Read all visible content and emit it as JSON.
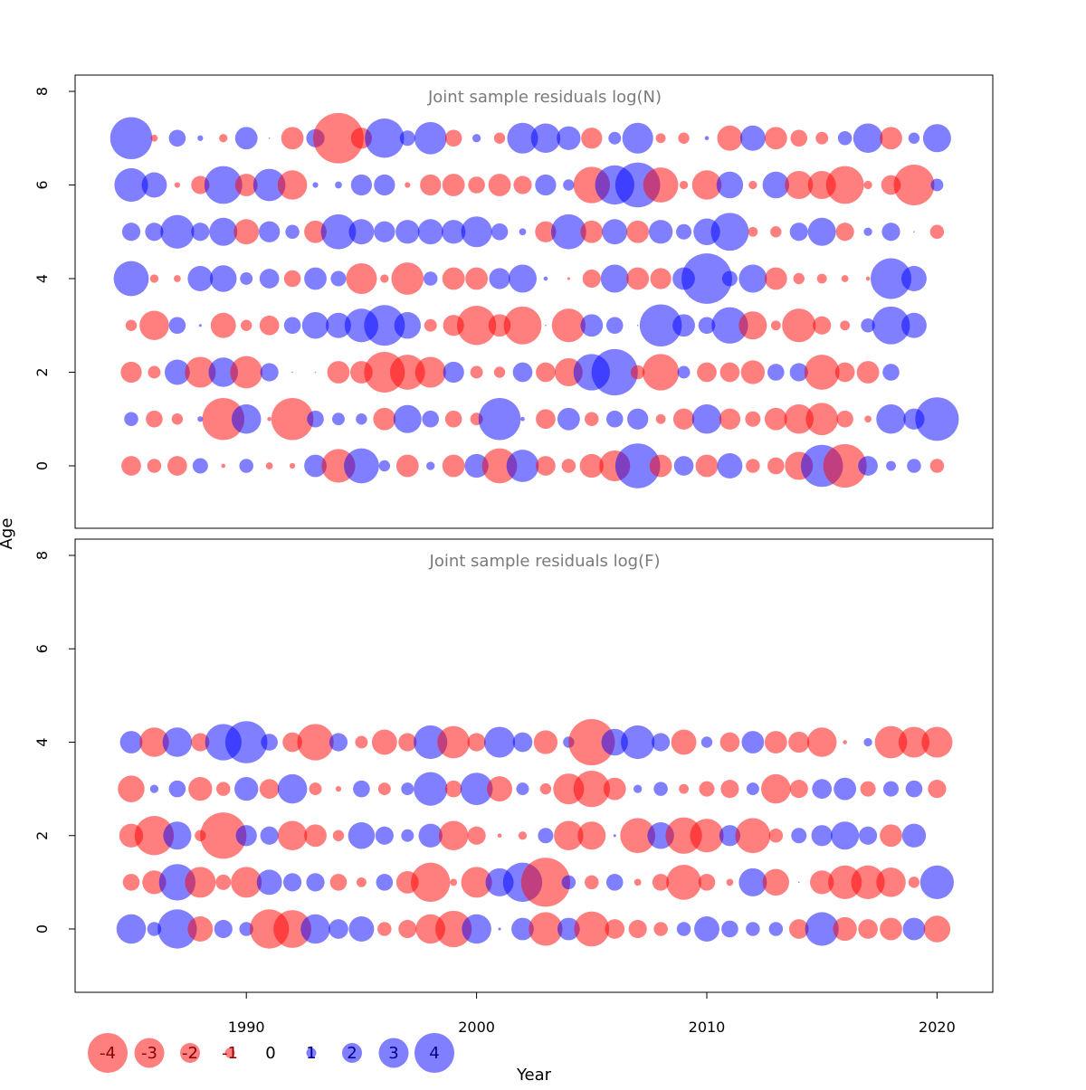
{
  "chart_data": {
    "type": "scatter",
    "subtype": "bubble-residuals",
    "xlabel": "Year",
    "ylabel": "Age",
    "x_ticks": [
      1990,
      2000,
      2010,
      2020
    ],
    "xlim": [
      1982.7,
      2022.5
    ],
    "y_ticks": [
      0,
      2,
      4,
      6,
      8
    ],
    "ylim": [
      -1.4,
      8.3
    ],
    "colors": {
      "negative": "#ff0000",
      "positive": "#0000ff",
      "opacity": 0.5
    },
    "legend": {
      "placement": "bottom-left",
      "values": [
        -4,
        -3,
        -2,
        -1,
        0,
        1,
        2,
        3,
        4
      ],
      "labels": [
        "-4",
        "-3",
        "-2",
        "-1",
        "0",
        "1",
        "2",
        "3",
        "4"
      ]
    },
    "panels": [
      {
        "title": "Joint sample residuals log(N)",
        "start_year": 1985,
        "ages": [
          7,
          6,
          5,
          4,
          3,
          2,
          1,
          0
        ],
        "residuals": [
          [
            3.0,
            -0.5,
            1.2,
            0.4,
            -0.6,
            1.6,
            0.1,
            -1.6,
            1.3,
            -3.6,
            -1.5,
            2.8,
            1.1,
            2.3,
            -1.2,
            0.6,
            -0.8,
            2.2,
            2.1,
            1.7,
            -1.5,
            0.9,
            2.2,
            -0.7,
            -0.8,
            0.3,
            -1.8,
            1.8,
            -1.6,
            -1.2,
            -0.9,
            1.0,
            2.1,
            -1.6,
            0.8,
            2.0
          ],
          [
            2.4,
            1.8,
            -0.4,
            -1.3,
            2.7,
            -1.6,
            2.3,
            -2.1,
            0.4,
            0.5,
            1.5,
            1.5,
            -0.4,
            -1.5,
            -1.6,
            -1.2,
            -1.6,
            -1.3,
            1.5,
            0.8,
            -2.6,
            2.8,
            3.2,
            -2.5,
            -0.6,
            -2.1,
            1.9,
            -0.6,
            1.9,
            -2.0,
            -2.0,
            -2.7,
            -0.6,
            -1.4,
            -2.9,
            0.9
          ],
          [
            1.3,
            1.3,
            2.4,
            1.3,
            2.0,
            -1.8,
            1.5,
            1.0,
            -1.6,
            2.5,
            1.8,
            1.5,
            1.7,
            1.8,
            1.7,
            2.2,
            1.2,
            0.5,
            -1.5,
            2.5,
            -1.6,
            1.8,
            -1.6,
            1.7,
            1.1,
            1.9,
            2.7,
            -0.7,
            -0.8,
            1.3,
            2.0,
            -1.3,
            0.6,
            1.3,
            0.1,
            -1.0
          ],
          [
            2.5,
            -0.6,
            -0.5,
            1.8,
            1.9,
            0.9,
            1.4,
            -1.2,
            1.6,
            1.1,
            -2.2,
            -0.6,
            -2.3,
            1.0,
            -1.6,
            -1.6,
            1.5,
            2.0,
            0.3,
            -0.2,
            -1.3,
            2.0,
            -1.6,
            -1.5,
            1.6,
            3.6,
            1.1,
            2.0,
            -1.6,
            -0.8,
            -0.7,
            -0.5,
            -0.3,
            2.9,
            1.8
          ],
          [
            -0.8,
            -2.1,
            1.2,
            0.2,
            -1.8,
            -0.8,
            -1.4,
            1.2,
            1.9,
            1.8,
            2.4,
            2.9,
            1.9,
            -0.9,
            -1.5,
            -2.8,
            -1.6,
            -2.7,
            0.1,
            -2.4,
            1.6,
            1.2,
            0.1,
            3.0,
            1.6,
            1.2,
            2.6,
            -2.0,
            -0.7,
            -2.4,
            -1.3,
            -0.7,
            1.0,
            2.7,
            1.8
          ],
          [
            -1.5,
            -0.9,
            1.8,
            -2.2,
            2.1,
            -2.3,
            1.3,
            0.1,
            -0.1,
            -1.6,
            -1.6,
            -2.9,
            -2.5,
            -2.2,
            1.5,
            -0.9,
            -0.8,
            1.4,
            -1.4,
            -2.0,
            2.6,
            3.3,
            -1.0,
            -2.6,
            0.9,
            -1.4,
            -1.4,
            -1.7,
            1.2,
            1.3,
            -2.5,
            -1.4,
            -1.6,
            1.2
          ],
          [
            1.0,
            -1.2,
            -0.8,
            0.4,
            -3.0,
            2.1,
            -0.3,
            -3.0,
            1.2,
            0.9,
            0.8,
            -1.6,
            2.0,
            1.2,
            -1.2,
            -0.9,
            3.0,
            0.3,
            -1.4,
            1.6,
            -1.0,
            1.2,
            1.5,
            -0.7,
            -1.5,
            2.1,
            -1.5,
            -1.1,
            -1.6,
            -2.1,
            -2.3,
            -1.2,
            -0.5,
            2.1,
            1.5,
            3.1
          ],
          [
            -1.4,
            -1.0,
            -1.4,
            1.1,
            -0.3,
            1.0,
            -0.5,
            -0.4,
            1.6,
            -2.4,
            2.5,
            0.8,
            -1.6,
            0.6,
            -1.6,
            1.7,
            -2.5,
            2.3,
            -1.4,
            -1.0,
            -1.7,
            -2.2,
            3.2,
            -1.6,
            1.4,
            -1.6,
            1.8,
            -1.0,
            -1.2,
            -2.0,
            3.0,
            -3.1,
            1.4,
            0.7,
            1.0,
            -1.0
          ]
        ]
      },
      {
        "title": "Joint sample residuals log(F)",
        "start_year": 1985,
        "ages": [
          4,
          3,
          2,
          1,
          0
        ],
        "residuals": [
          [
            1.6,
            -2.1,
            2.1,
            -1.3,
            2.6,
            3.0,
            1.2,
            -1.4,
            -2.6,
            1.3,
            -0.9,
            -1.8,
            -1.3,
            2.4,
            -2.3,
            -1.3,
            2.2,
            1.4,
            -1.7,
            0.8,
            -3.3,
            1.9,
            2.4,
            1.3,
            -1.8,
            0.8,
            -1.4,
            1.6,
            -1.6,
            -1.5,
            -2.1,
            -0.3,
            0.6,
            -2.3,
            -2.2,
            -2.2
          ],
          [
            -1.9,
            0.6,
            1.2,
            -1.7,
            -1.0,
            1.7,
            -1.4,
            2.1,
            -0.9,
            -0.4,
            1.2,
            -0.9,
            0.9,
            2.4,
            -1.2,
            2.3,
            -1.8,
            0.9,
            -0.8,
            -2.2,
            -2.6,
            -1.6,
            0.6,
            1.0,
            -0.7,
            -1.1,
            -1.3,
            0.9,
            -2.1,
            -1.3,
            1.4,
            1.6,
            -1.1,
            1.1,
            1.2,
            -1.3
          ],
          [
            -1.7,
            -2.8,
            2.0,
            -0.8,
            -3.3,
            1.5,
            1.3,
            -2.1,
            -1.6,
            -0.8,
            1.9,
            1.3,
            0.9,
            1.7,
            -2.1,
            -1.3,
            -0.3,
            -0.6,
            1.1,
            -2.1,
            -2.0,
            0.2,
            -2.5,
            1.9,
            -2.6,
            -2.4,
            1.5,
            -2.5,
            -1.0,
            1.1,
            1.5,
            2.0,
            1.3,
            -1.6,
            1.7
          ],
          [
            -1.2,
            -1.7,
            2.6,
            -2.2,
            -1.1,
            -2.2,
            1.8,
            1.3,
            1.3,
            -1.2,
            -0.7,
            1.2,
            -1.6,
            -2.8,
            -0.5,
            -2.2,
            2.0,
            2.8,
            -3.5,
            1.0,
            -1.0,
            1.2,
            -0.5,
            -1.2,
            -2.5,
            -1.2,
            -0.5,
            2.0,
            -1.9,
            0.1,
            -1.7,
            -2.4,
            -2.4,
            -2.1,
            -0.8,
            2.4
          ],
          [
            2.1,
            1.0,
            2.8,
            -1.8,
            1.3,
            1.0,
            -2.8,
            -2.7,
            2.1,
            1.4,
            1.8,
            -1.0,
            -1.3,
            -2.1,
            -2.6,
            2.1,
            0.2,
            1.6,
            -2.4,
            1.6,
            -2.5,
            -1.4,
            -1.3,
            -1.0,
            1.0,
            1.8,
            1.2,
            1.0,
            1.0,
            -1.4,
            2.4,
            -1.7,
            -1.4,
            -1.6,
            1.6,
            -1.9
          ]
        ]
      }
    ]
  }
}
